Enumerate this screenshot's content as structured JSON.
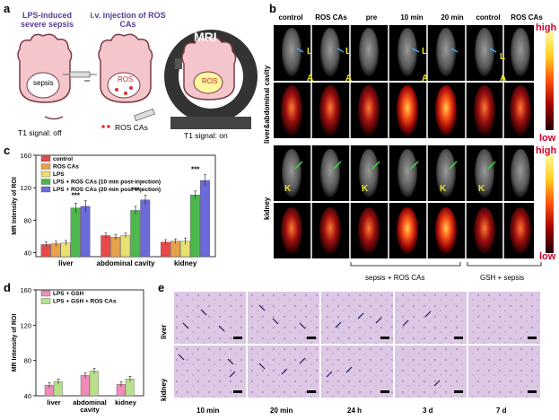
{
  "panel_labels": {
    "a": "a",
    "b": "b",
    "c": "c",
    "d": "d",
    "e": "e"
  },
  "panel_a": {
    "step1": "LPS-induced severe sepsis",
    "step2": "i.v. injection of ROS CAs",
    "mri": "MRI",
    "sepsis": "sepsis",
    "ros": "ROS",
    "ros2": "ROS",
    "legend": "ROS CAs",
    "t1_off": "T1 signal: off",
    "t1_on": "T1 signal: on"
  },
  "panel_b": {
    "columns": [
      "control",
      "ROS CAs",
      "pre",
      "10 min",
      "20 min",
      "control",
      "ROS CAs"
    ],
    "row_group1": "liver&abdominal cavity",
    "row_group2": "kidney",
    "marker_L": "L",
    "marker_A": "A",
    "marker_K": "K",
    "colorbar_high": "high",
    "colorbar_low": "low",
    "bracket1": "sepsis + ROS CAs",
    "bracket2": "GSH + sepsis"
  },
  "chart_data": [
    {
      "type": "bar",
      "panel": "c",
      "ylabel": "MR Intensity of ROI",
      "ylim": [
        35,
        160
      ],
      "yticks": [
        40,
        80,
        120,
        160
      ],
      "categories": [
        "liver",
        "abdominal cavity",
        "kidney"
      ],
      "series": [
        {
          "name": "control",
          "color": "#e84a4a",
          "values": [
            50,
            61,
            53
          ]
        },
        {
          "name": "ROS CAs",
          "color": "#e8a04a",
          "values": [
            51,
            59,
            54
          ]
        },
        {
          "name": "LPS",
          "color": "#e8e070",
          "values": [
            52,
            61,
            54
          ]
        },
        {
          "name": "LPS + ROS CAs (10 min post-injection)",
          "color": "#4cb84c",
          "values": [
            95,
            92,
            111
          ]
        },
        {
          "name": "LPS + ROS CAs (20 min post-injection)",
          "color": "#6a6ad8",
          "values": [
            97,
            105,
            129
          ]
        }
      ],
      "errors": [
        [
          3,
          3,
          3
        ],
        [
          3,
          3,
          3
        ],
        [
          3,
          3,
          4
        ],
        [
          6,
          5,
          5
        ],
        [
          7,
          6,
          7
        ]
      ],
      "annotations": [
        "***",
        "***",
        "***"
      ]
    },
    {
      "type": "bar",
      "panel": "d",
      "ylabel": "MR Intensity of ROI",
      "ylim": [
        40,
        160
      ],
      "yticks": [
        40,
        80,
        120,
        160
      ],
      "categories": [
        "liver",
        "abdominal cavity",
        "kidney"
      ],
      "series": [
        {
          "name": "LPS + GSH",
          "color": "#f08ab8",
          "values": [
            52,
            63,
            53
          ]
        },
        {
          "name": "LPS + GSH + ROS CAs",
          "color": "#b8e08a",
          "values": [
            56,
            68,
            59
          ]
        }
      ],
      "errors": [
        [
          3,
          3,
          3
        ],
        [
          3,
          3,
          3
        ]
      ]
    }
  ],
  "panel_e": {
    "rows": [
      "liver",
      "kidney"
    ],
    "times": [
      "10 min",
      "20 min",
      "24 h",
      "3 d",
      "7 d"
    ]
  }
}
